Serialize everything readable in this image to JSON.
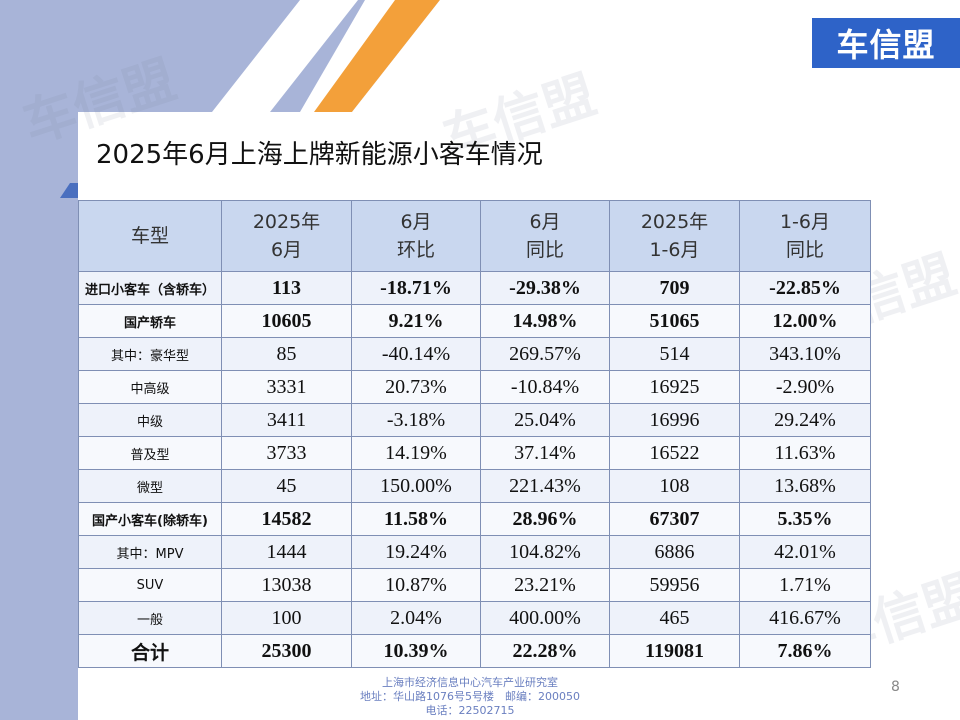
{
  "brand": {
    "logo_text": "车信盟",
    "watermark_text": "车信盟"
  },
  "slide": {
    "title": "2025年6月上海上牌新能源小客车情况",
    "page_number": "8"
  },
  "table": {
    "headers": [
      {
        "line1": "车型",
        "line2": ""
      },
      {
        "line1": "2025年",
        "line2": "6月"
      },
      {
        "line1": "6月",
        "line2": "环比"
      },
      {
        "line1": "6月",
        "line2": "同比"
      },
      {
        "line1": "2025年",
        "line2": "1-6月"
      },
      {
        "line1": "1-6月",
        "line2": "同比"
      }
    ],
    "rows": [
      {
        "category": "进口小客车（含轿车）",
        "june": "113",
        "mom": "-18.71%",
        "yoy": "-29.38%",
        "ytd": "709",
        "ytd_yoy": "-22.85%",
        "bold": true
      },
      {
        "category": "国产轿车",
        "june": "10605",
        "mom": "9.21%",
        "yoy": "14.98%",
        "ytd": "51065",
        "ytd_yoy": "12.00%",
        "bold": true
      },
      {
        "category": "其中：豪华型",
        "june": "85",
        "mom": "-40.14%",
        "yoy": "269.57%",
        "ytd": "514",
        "ytd_yoy": "343.10%",
        "bold": false
      },
      {
        "category": "中高级",
        "june": "3331",
        "mom": "20.73%",
        "yoy": "-10.84%",
        "ytd": "16925",
        "ytd_yoy": "-2.90%",
        "bold": false
      },
      {
        "category": "中级",
        "june": "3411",
        "mom": "-3.18%",
        "yoy": "25.04%",
        "ytd": "16996",
        "ytd_yoy": "29.24%",
        "bold": false
      },
      {
        "category": "普及型",
        "june": "3733",
        "mom": "14.19%",
        "yoy": "37.14%",
        "ytd": "16522",
        "ytd_yoy": "11.63%",
        "bold": false
      },
      {
        "category": "微型",
        "june": "45",
        "mom": "150.00%",
        "yoy": "221.43%",
        "ytd": "108",
        "ytd_yoy": "13.68%",
        "bold": false
      },
      {
        "category": "国产小客车(除轿车)",
        "june": "14582",
        "mom": "11.58%",
        "yoy": "28.96%",
        "ytd": "67307",
        "ytd_yoy": "5.35%",
        "bold": true
      },
      {
        "category": "其中：MPV",
        "june": "1444",
        "mom": "19.24%",
        "yoy": "104.82%",
        "ytd": "6886",
        "ytd_yoy": "42.01%",
        "bold": false
      },
      {
        "category": "SUV",
        "june": "13038",
        "mom": "10.87%",
        "yoy": "23.21%",
        "ytd": "59956",
        "ytd_yoy": "1.71%",
        "bold": false
      },
      {
        "category": "一般",
        "june": "100",
        "mom": "2.04%",
        "yoy": "400.00%",
        "ytd": "465",
        "ytd_yoy": "416.67%",
        "bold": false
      },
      {
        "category": "合计",
        "june": "25300",
        "mom": "10.39%",
        "yoy": "22.28%",
        "ytd": "119081",
        "ytd_yoy": "7.86%",
        "bold": true
      }
    ]
  },
  "footer": {
    "line1": "上海市经济信息中心汽车产业研究室",
    "line2": "地址：华山路1076号5号楼　邮编：200050",
    "line3": "电话：22502715"
  },
  "colors": {
    "accent_blue": "#4a6fbf",
    "accent_orange": "#f3a03a",
    "header_fill": "#c9d7ef",
    "logo_fill": "#2e63c8"
  }
}
